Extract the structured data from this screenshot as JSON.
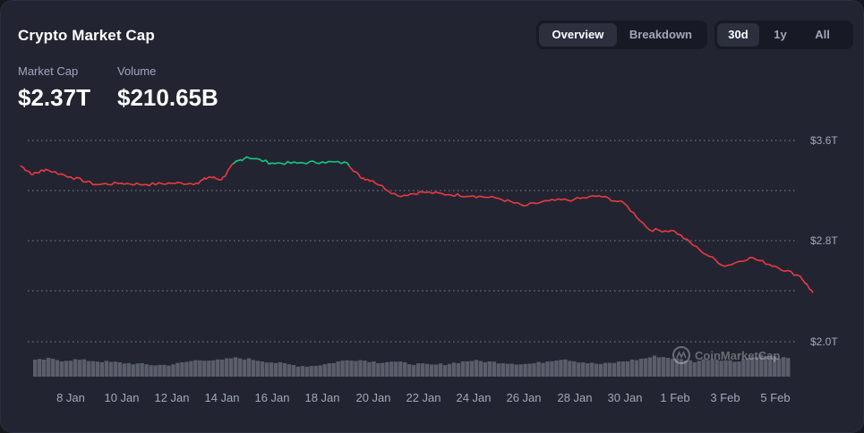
{
  "title": "Crypto Market Cap",
  "stats": {
    "market_cap": {
      "label": "Market Cap",
      "value": "$2.37T"
    },
    "volume": {
      "label": "Volume",
      "value": "$210.65B"
    }
  },
  "view_toggle": {
    "options": [
      "Overview",
      "Breakdown"
    ],
    "selected": "Overview"
  },
  "range_toggle": {
    "options": [
      "30d",
      "1y",
      "All"
    ],
    "selected": "30d"
  },
  "watermark": "CoinMarketCap",
  "colors": {
    "up": "#16c784",
    "down": "#ea3943",
    "background": "#222531",
    "grid": "#cfd6e4",
    "volume": "#5a5e6b"
  },
  "chart_data": {
    "type": "line",
    "y_ticks": [
      "$3.6T",
      "$2.8T",
      "$2.0T"
    ],
    "x_ticks": [
      "8 Jan",
      "10 Jan",
      "12 Jan",
      "14 Jan",
      "16 Jan",
      "18 Jan",
      "20 Jan",
      "22 Jan",
      "24 Jan",
      "26 Jan",
      "28 Jan",
      "30 Jan",
      "1 Feb",
      "3 Feb",
      "5 Feb"
    ],
    "ylim": [
      2.0,
      3.6
    ],
    "grid": "dotted horizontal",
    "series": [
      {
        "values": [
          [
            "2025-01-06",
            3.4
          ],
          [
            "2025-01-06 12:00",
            3.33
          ],
          [
            "2025-01-07",
            3.37
          ],
          [
            "2025-01-08",
            3.31
          ],
          [
            "2025-01-09",
            3.25
          ],
          [
            "2025-01-10",
            3.26
          ],
          [
            "2025-01-11",
            3.25
          ],
          [
            "2025-01-12",
            3.26
          ],
          [
            "2025-01-13",
            3.26
          ],
          [
            "2025-01-13 12:00",
            3.31
          ],
          [
            "2025-01-14",
            3.29
          ],
          [
            "2025-01-14 12:00",
            3.42
          ],
          [
            "2025-01-15",
            3.47
          ],
          [
            "2025-01-16",
            3.42
          ],
          [
            "2025-01-17",
            3.42
          ],
          [
            "2025-01-18",
            3.43
          ],
          [
            "2025-01-19",
            3.42
          ],
          [
            "2025-01-19 12:00",
            3.31
          ],
          [
            "2025-01-20",
            3.28
          ],
          [
            "2025-01-21",
            3.16
          ],
          [
            "2025-01-22",
            3.19
          ],
          [
            "2025-01-23",
            3.17
          ],
          [
            "2025-01-24",
            3.16
          ],
          [
            "2025-01-25",
            3.14
          ],
          [
            "2025-01-26",
            3.08
          ],
          [
            "2025-01-27",
            3.12
          ],
          [
            "2025-01-28",
            3.13
          ],
          [
            "2025-01-29",
            3.16
          ],
          [
            "2025-01-30",
            3.1
          ],
          [
            "2025-01-31",
            2.89
          ],
          [
            "2025-02-01",
            2.88
          ],
          [
            "2025-02-02",
            2.73
          ],
          [
            "2025-02-03",
            2.6
          ],
          [
            "2025-02-04",
            2.67
          ],
          [
            "2025-02-05",
            2.6
          ],
          [
            "2025-02-06",
            2.52
          ],
          [
            "2025-02-06 12:00",
            2.39
          ]
        ]
      }
    ]
  }
}
